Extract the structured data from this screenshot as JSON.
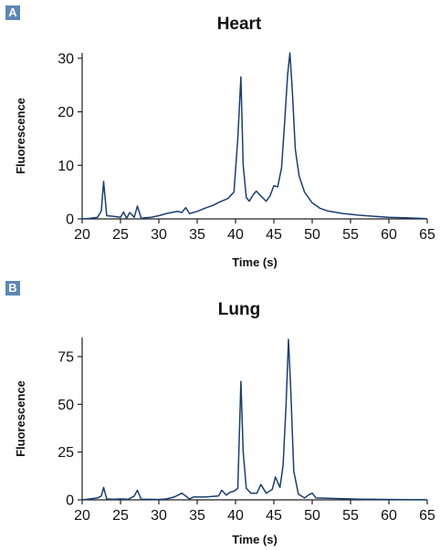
{
  "chart_data": [
    {
      "panel_label": "A",
      "type": "line",
      "title": "Heart",
      "xlabel": "Time (s)",
      "ylabel": "Fluorescence",
      "xlim": [
        20,
        65
      ],
      "ylim": [
        0,
        31
      ],
      "xticks": [
        20,
        25,
        30,
        35,
        40,
        45,
        50,
        55,
        60,
        65
      ],
      "yticks": [
        0,
        10,
        20,
        30
      ],
      "grid": false,
      "line_color": "#1a3f73",
      "series": [
        {
          "x": [
            20,
            21,
            22,
            22.5,
            22.8,
            23.2,
            24,
            25,
            25.4,
            25.8,
            26.2,
            26.8,
            27.2,
            27.7,
            28.2,
            29,
            30,
            31,
            32,
            32.5,
            33,
            33.5,
            34,
            35,
            36,
            37,
            38,
            39,
            39.8,
            40.3,
            40.7,
            41,
            41.4,
            41.8,
            42.3,
            42.7,
            43.3,
            44,
            44.5,
            45,
            45.5,
            46,
            46.4,
            46.8,
            47.1,
            47.4,
            47.8,
            48.3,
            49,
            50,
            51,
            52,
            54,
            56,
            58,
            60,
            62,
            64,
            65
          ],
          "y": [
            0,
            0.1,
            0.3,
            1.5,
            7,
            0.6,
            0.5,
            0.3,
            1.3,
            0.1,
            1.2,
            0.3,
            2.4,
            0.1,
            0.2,
            0.3,
            0.6,
            1.0,
            1.3,
            1.4,
            1.2,
            2.1,
            1.0,
            1.4,
            2.0,
            2.5,
            3.2,
            3.8,
            5.0,
            15,
            26.5,
            10,
            4.0,
            3.3,
            4.5,
            5.2,
            4.3,
            3.3,
            4.3,
            6.2,
            6.0,
            9.5,
            18,
            27,
            31,
            24,
            13,
            8.0,
            5.0,
            3.0,
            2.0,
            1.5,
            1.0,
            0.7,
            0.5,
            0.3,
            0.2,
            0.1,
            0.05
          ]
        }
      ]
    },
    {
      "panel_label": "B",
      "type": "line",
      "title": "Lung",
      "xlabel": "Time (s)",
      "ylabel": "Fluorescence",
      "xlim": [
        20,
        65
      ],
      "ylim": [
        0,
        85
      ],
      "xticks": [
        20,
        25,
        30,
        35,
        40,
        45,
        50,
        55,
        60,
        65
      ],
      "yticks": [
        0,
        25,
        50,
        75
      ],
      "grid": false,
      "line_color": "#1a3f73",
      "series": [
        {
          "x": [
            20,
            21,
            22,
            22.5,
            22.8,
            23.2,
            24,
            25,
            26,
            26.8,
            27.2,
            27.7,
            28.5,
            30,
            31,
            32,
            33,
            33.5,
            34,
            34.5,
            36,
            37,
            37.8,
            38.2,
            38.8,
            39.3,
            39.8,
            40.3,
            40.7,
            41,
            41.4,
            42,
            42.8,
            43.3,
            44,
            44.8,
            45.2,
            45.8,
            46.2,
            46.6,
            46.9,
            47.2,
            47.6,
            48.2,
            49,
            49.5,
            50,
            50.5,
            52,
            54,
            56,
            58,
            60,
            62,
            65
          ],
          "y": [
            0,
            0.5,
            1.0,
            2.0,
            6.5,
            0.5,
            0.3,
            0.5,
            0.3,
            2.0,
            5.0,
            0.3,
            0.3,
            0.2,
            0.5,
            1.5,
            3.5,
            2.0,
            0.5,
            1.5,
            1.5,
            1.8,
            2.0,
            5.0,
            2.5,
            4.0,
            4.5,
            6.0,
            62,
            25,
            6.0,
            3.5,
            3.5,
            8.0,
            3.5,
            5.5,
            12,
            6.5,
            18,
            50,
            84,
            58,
            15,
            3.0,
            1.0,
            2.5,
            3.5,
            1.0,
            0.8,
            0.6,
            0.4,
            0.3,
            0.2,
            0.1,
            0.05
          ]
        }
      ]
    }
  ]
}
